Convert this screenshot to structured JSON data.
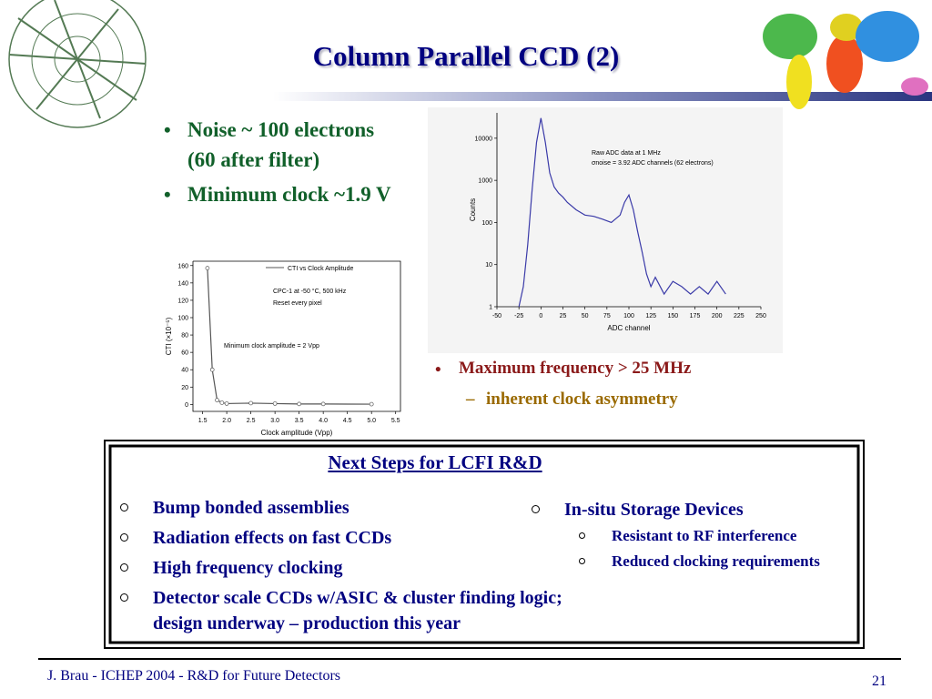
{
  "title": "Column Parallel CCD (2)",
  "top_bullets": [
    [
      "Noise ~ 100 electrons",
      "(60 after filter)"
    ],
    [
      "Minimum clock ~1.9 V"
    ]
  ],
  "right_bullets": {
    "main": "Maximum frequency > 25 MHz",
    "sub": "inherent clock asymmetry"
  },
  "next_steps": {
    "heading": "Next Steps for LCFI R&D",
    "left": [
      "Bump bonded assemblies",
      "Radiation effects on fast CCDs",
      "High frequency clocking",
      "Detector scale CCDs w/ASIC & cluster finding logic; design underway – production this year"
    ],
    "right": {
      "main": "In-situ Storage Devices",
      "sub": [
        "Resistant to RF interference",
        "Reduced clocking requirements"
      ]
    }
  },
  "footer": "J. Brau - ICHEP 2004 - R&D for Future Detectors",
  "page_number": "21",
  "charts": [
    {
      "type": "line",
      "xlabel": "Clock amplitude (Vpp)",
      "ylabel": "CTI (×10⁻⁵)",
      "legend": "CTI vs Clock Amplitude",
      "annotations": [
        "CPC-1 at -50 °C, 500 kHz",
        "Reset every pixel",
        "Minimum clock amplitude = 2 Vpp"
      ],
      "series": [
        {
          "name": "CTI vs Clock Amplitude",
          "color": "#555555",
          "marker": "circle",
          "x": [
            1.6,
            1.7,
            1.8,
            1.9,
            2.0,
            2.5,
            3.0,
            3.5,
            4.0,
            5.0
          ],
          "values": [
            157,
            40,
            5,
            2,
            1,
            1.5,
            1,
            0.5,
            0.5,
            0.3
          ]
        }
      ],
      "xlim": [
        1.3,
        5.6
      ],
      "xticks": [
        1.5,
        {
          "value": 2,
          "label": "2.0"
        },
        2.5,
        {
          "value": 3,
          "label": "3.0"
        },
        3.5,
        {
          "value": 4,
          "label": "4.0"
        },
        4.5,
        {
          "value": 5,
          "label": "5.0"
        },
        5.5
      ],
      "ylim": [
        -8,
        165
      ],
      "yticks": [
        0,
        20,
        40,
        60,
        80,
        100,
        120,
        140,
        160
      ]
    },
    {
      "type": "line",
      "log_y": true,
      "xlabel": "ADC channel",
      "ylabel": "Counts",
      "annotations": [
        "Raw ADC data at 1 MHz",
        "σnoise = 3.92 ADC channels (62 electrons)"
      ],
      "series": [
        {
          "name": "Raw ADC data",
          "color": "#3a3aa8",
          "x": [
            -25,
            -20,
            -15,
            -10,
            -5,
            0,
            5,
            10,
            15,
            20,
            25,
            30,
            40,
            50,
            60,
            70,
            80,
            90,
            95,
            100,
            105,
            110,
            115,
            120,
            125,
            130,
            140,
            150,
            160,
            170,
            180,
            190,
            200,
            210
          ],
          "values": [
            1,
            3,
            30,
            600,
            8000,
            30000,
            8000,
            1500,
            700,
            500,
            400,
            300,
            200,
            150,
            140,
            120,
            100,
            150,
            300,
            450,
            200,
            60,
            20,
            6,
            3,
            5,
            2,
            4,
            3,
            2,
            3,
            2,
            4,
            2
          ]
        }
      ],
      "xlim": [
        -50,
        250
      ],
      "xticks": [
        -50,
        -25,
        0,
        25,
        50,
        75,
        100,
        125,
        150,
        175,
        200,
        225,
        250
      ],
      "ylim": [
        1,
        40000
      ],
      "yticks": [
        1,
        10,
        100,
        1000,
        10000
      ]
    }
  ]
}
